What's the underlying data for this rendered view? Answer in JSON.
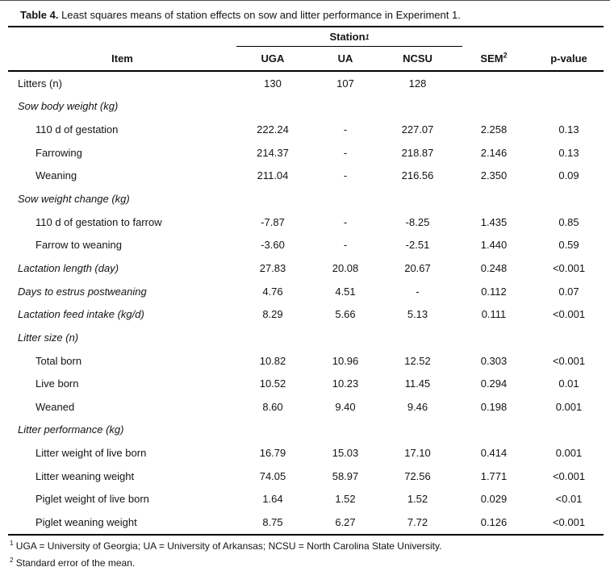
{
  "title": {
    "bold": "Table 4.",
    "text": " Least squares means of station effects on sow and litter performance in Experiment 1."
  },
  "table": {
    "station_group": {
      "label": "Station",
      "superscript": "1"
    },
    "columns": {
      "item": "Item",
      "stations": [
        "UGA",
        "UA",
        "NCSU"
      ],
      "sem": {
        "label": "SEM",
        "superscript": "2"
      },
      "pvalue": "p-value"
    },
    "rows": [
      {
        "label": "Litters (n)",
        "italic": false,
        "indent": false,
        "values": [
          "130",
          "107",
          "128",
          "",
          ""
        ]
      },
      {
        "label": "Sow body weight (kg)",
        "italic": true,
        "indent": false,
        "values": [
          "",
          "",
          "",
          "",
          ""
        ]
      },
      {
        "label": "110 d of gestation",
        "italic": false,
        "indent": true,
        "values": [
          "222.24",
          "-",
          "227.07",
          "2.258",
          "0.13"
        ]
      },
      {
        "label": "Farrowing",
        "italic": false,
        "indent": true,
        "values": [
          "214.37",
          "-",
          "218.87",
          "2.146",
          "0.13"
        ]
      },
      {
        "label": "Weaning",
        "italic": false,
        "indent": true,
        "values": [
          "211.04",
          "-",
          "216.56",
          "2.350",
          "0.09"
        ]
      },
      {
        "label": "Sow weight change (kg)",
        "italic": true,
        "indent": false,
        "values": [
          "",
          "",
          "",
          "",
          ""
        ]
      },
      {
        "label": "110 d of gestation to farrow",
        "italic": false,
        "indent": true,
        "values": [
          "-7.87",
          "-",
          "-8.25",
          "1.435",
          "0.85"
        ]
      },
      {
        "label": "Farrow to weaning",
        "italic": false,
        "indent": true,
        "values": [
          "-3.60",
          "-",
          "-2.51",
          "1.440",
          "0.59"
        ]
      },
      {
        "label": "Lactation length (day)",
        "italic": true,
        "indent": false,
        "values": [
          "27.83",
          "20.08",
          "20.67",
          "0.248",
          "<0.001"
        ]
      },
      {
        "label": "Days to estrus postweaning",
        "italic": true,
        "indent": false,
        "values": [
          "4.76",
          "4.51",
          "-",
          "0.112",
          "0.07"
        ]
      },
      {
        "label": "Lactation feed intake (kg/d)",
        "italic": true,
        "indent": false,
        "values": [
          "8.29",
          "5.66",
          "5.13",
          "0.111",
          "<0.001"
        ]
      },
      {
        "label": "Litter size (n)",
        "italic": true,
        "indent": false,
        "values": [
          "",
          "",
          "",
          "",
          ""
        ]
      },
      {
        "label": "Total born",
        "italic": false,
        "indent": true,
        "values": [
          "10.82",
          "10.96",
          "12.52",
          "0.303",
          "<0.001"
        ]
      },
      {
        "label": "Live born",
        "italic": false,
        "indent": true,
        "values": [
          "10.52",
          "10.23",
          "11.45",
          "0.294",
          "0.01"
        ]
      },
      {
        "label": "Weaned",
        "italic": false,
        "indent": true,
        "values": [
          "8.60",
          "9.40",
          "9.46",
          "0.198",
          "0.001"
        ]
      },
      {
        "label": "Litter performance (kg)",
        "italic": true,
        "indent": false,
        "values": [
          "",
          "",
          "",
          "",
          ""
        ]
      },
      {
        "label": "Litter weight of live born",
        "italic": false,
        "indent": true,
        "values": [
          "16.79",
          "15.03",
          "17.10",
          "0.414",
          "0.001"
        ]
      },
      {
        "label": "Litter weaning weight",
        "italic": false,
        "indent": true,
        "values": [
          "74.05",
          "58.97",
          "72.56",
          "1.771",
          "<0.001"
        ]
      },
      {
        "label": "Piglet weight of live born",
        "italic": false,
        "indent": true,
        "values": [
          "1.64",
          "1.52",
          "1.52",
          "0.029",
          "<0.01"
        ]
      },
      {
        "label": "Piglet weaning weight",
        "italic": false,
        "indent": true,
        "values": [
          "8.75",
          "6.27",
          "7.72",
          "0.126",
          "<0.001"
        ]
      }
    ]
  },
  "footnotes": [
    {
      "marker": "1",
      "text": " UGA = University of Georgia; UA = University of Arkansas; NCSU = North Carolina State University."
    },
    {
      "marker": "2",
      "text": " Standard error of the mean."
    }
  ],
  "colors": {
    "text": "#141414",
    "rule": "#000000",
    "background": "#ffffff"
  }
}
